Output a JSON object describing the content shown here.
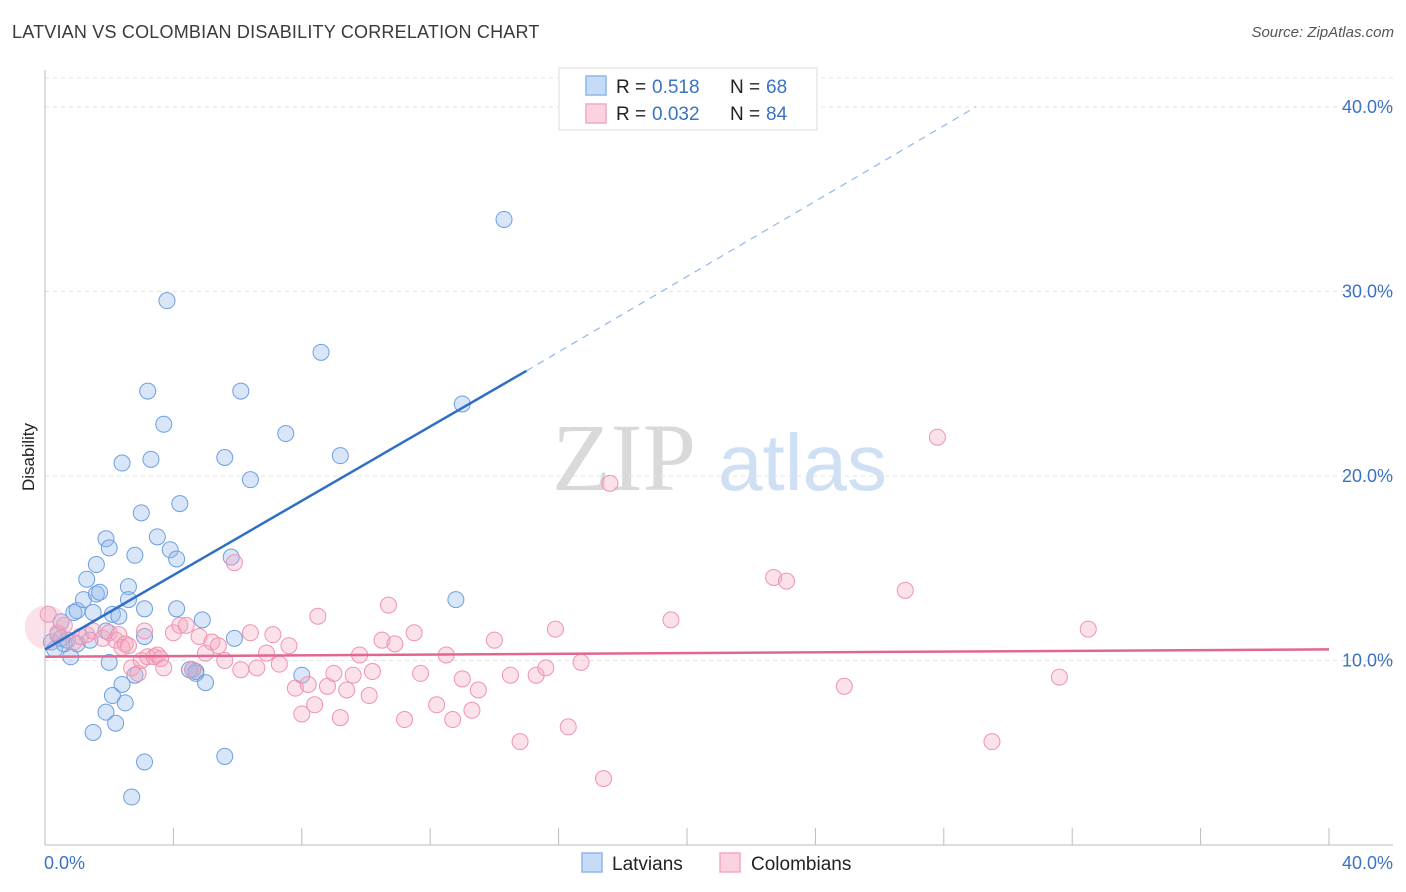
{
  "header": {
    "title": "LATVIAN VS COLOMBIAN DISABILITY CORRELATION CHART",
    "source": "Source: ZipAtlas.com"
  },
  "watermark": {
    "zip": "ZIP",
    "atlas": "atlas"
  },
  "legend": {
    "rows": [
      {
        "r_label": "R =",
        "r_value": "0.518",
        "n_label": "N =",
        "n_value": "68",
        "color": "#8fb7ea"
      },
      {
        "r_label": "R =",
        "r_value": "0.032",
        "n_label": "N =",
        "n_value": "84",
        "color": "#f3a8c0"
      }
    ]
  },
  "bottom_legend": {
    "items": [
      {
        "label": "Latvians",
        "color": "#8fb7ea"
      },
      {
        "label": "Colombians",
        "color": "#f3a8c0"
      }
    ]
  },
  "chart_data": {
    "type": "scatter",
    "title": "LATVIAN VS COLOMBIAN DISABILITY CORRELATION CHART",
    "xlabel": "",
    "ylabel": "Disability",
    "xlim": [
      0,
      40
    ],
    "ylim": [
      0,
      42
    ],
    "x_tick_labels": [
      "0.0%",
      "40.0%"
    ],
    "y_ticks": [
      10,
      20,
      30,
      40
    ],
    "y_tick_labels": [
      "10.0%",
      "20.0%",
      "30.0%",
      "40.0%"
    ],
    "grid": true,
    "legend_position": "top-center",
    "series": [
      {
        "name": "Latvians",
        "color": "#6d9fe0",
        "line_color": "#2f6fc6",
        "trend": {
          "x0": 0.0,
          "y0": 10.6,
          "x1": 15.0,
          "y1": 25.7,
          "dash_to_x": 29.0,
          "dash_to_y": 40.0
        },
        "points": [
          [
            0.2,
            11.0
          ],
          [
            0.3,
            10.6
          ],
          [
            0.4,
            11.4
          ],
          [
            0.5,
            11.2
          ],
          [
            0.6,
            10.9
          ],
          [
            0.7,
            11.1
          ],
          [
            0.8,
            10.2
          ],
          [
            0.9,
            12.6
          ],
          [
            1.0,
            12.7
          ],
          [
            1.0,
            10.9
          ],
          [
            1.2,
            13.3
          ],
          [
            1.3,
            14.4
          ],
          [
            1.4,
            11.1
          ],
          [
            1.5,
            6.1
          ],
          [
            1.5,
            12.6
          ],
          [
            1.6,
            13.6
          ],
          [
            1.7,
            13.7
          ],
          [
            1.6,
            15.2
          ],
          [
            1.9,
            7.2
          ],
          [
            1.9,
            11.6
          ],
          [
            2.0,
            9.9
          ],
          [
            1.9,
            16.6
          ],
          [
            2.0,
            16.1
          ],
          [
            2.1,
            12.5
          ],
          [
            2.1,
            8.1
          ],
          [
            2.2,
            6.6
          ],
          [
            2.3,
            12.4
          ],
          [
            2.4,
            8.7
          ],
          [
            2.4,
            20.7
          ],
          [
            2.5,
            7.7
          ],
          [
            2.6,
            14.0
          ],
          [
            2.6,
            13.3
          ],
          [
            2.7,
            2.6
          ],
          [
            2.8,
            9.2
          ],
          [
            2.8,
            15.7
          ],
          [
            3.0,
            18.0
          ],
          [
            3.1,
            12.8
          ],
          [
            3.1,
            4.5
          ],
          [
            3.1,
            11.3
          ],
          [
            3.2,
            24.6
          ],
          [
            3.3,
            20.9
          ],
          [
            3.5,
            16.7
          ],
          [
            3.7,
            22.8
          ],
          [
            3.8,
            29.5
          ],
          [
            3.9,
            16.0
          ],
          [
            4.1,
            12.8
          ],
          [
            4.1,
            15.5
          ],
          [
            4.2,
            18.5
          ],
          [
            4.7,
            9.3
          ],
          [
            4.7,
            9.4
          ],
          [
            4.9,
            12.2
          ],
          [
            5.0,
            8.8
          ],
          [
            5.6,
            21.0
          ],
          [
            5.6,
            4.8
          ],
          [
            5.8,
            15.6
          ],
          [
            5.9,
            11.2
          ],
          [
            6.1,
            24.6
          ],
          [
            6.4,
            19.8
          ],
          [
            7.5,
            22.3
          ],
          [
            8.0,
            9.2
          ],
          [
            8.6,
            26.7
          ],
          [
            9.2,
            21.1
          ],
          [
            12.8,
            13.3
          ],
          [
            13.0,
            23.9
          ],
          [
            14.3,
            33.9
          ],
          [
            4.5,
            9.5
          ],
          [
            4.6,
            9.5
          ],
          [
            0.5,
            12.1
          ]
        ]
      },
      {
        "name": "Colombians",
        "color": "#f093b0",
        "line_color": "#e2668f",
        "trend": {
          "x0": 0.0,
          "y0": 10.2,
          "x1": 40.0,
          "y1": 10.6
        },
        "points": [
          [
            0.1,
            12.5
          ],
          [
            0.4,
            11.5
          ],
          [
            0.6,
            11.9
          ],
          [
            0.9,
            11.0
          ],
          [
            1.1,
            11.3
          ],
          [
            1.3,
            11.4
          ],
          [
            1.5,
            11.6
          ],
          [
            1.8,
            11.2
          ],
          [
            2.0,
            11.5
          ],
          [
            2.2,
            11.1
          ],
          [
            2.3,
            11.4
          ],
          [
            2.4,
            10.7
          ],
          [
            2.5,
            10.9
          ],
          [
            2.6,
            10.8
          ],
          [
            2.7,
            9.6
          ],
          [
            2.9,
            9.3
          ],
          [
            3.0,
            10.0
          ],
          [
            3.1,
            11.6
          ],
          [
            3.2,
            10.2
          ],
          [
            3.4,
            10.2
          ],
          [
            3.5,
            10.3
          ],
          [
            3.6,
            10.1
          ],
          [
            3.7,
            9.6
          ],
          [
            4.0,
            11.5
          ],
          [
            4.2,
            11.9
          ],
          [
            4.4,
            11.9
          ],
          [
            4.6,
            9.5
          ],
          [
            4.8,
            11.3
          ],
          [
            5.0,
            10.4
          ],
          [
            5.2,
            11.0
          ],
          [
            5.4,
            10.8
          ],
          [
            5.6,
            10.0
          ],
          [
            5.9,
            15.3
          ],
          [
            6.1,
            9.5
          ],
          [
            6.4,
            11.5
          ],
          [
            6.6,
            9.6
          ],
          [
            6.9,
            10.4
          ],
          [
            7.1,
            11.4
          ],
          [
            7.3,
            9.8
          ],
          [
            7.6,
            10.8
          ],
          [
            7.8,
            8.5
          ],
          [
            8.0,
            7.1
          ],
          [
            8.2,
            8.7
          ],
          [
            8.4,
            7.6
          ],
          [
            8.5,
            12.4
          ],
          [
            8.8,
            8.6
          ],
          [
            9.0,
            9.3
          ],
          [
            9.2,
            6.9
          ],
          [
            9.4,
            8.4
          ],
          [
            9.6,
            9.2
          ],
          [
            9.8,
            10.3
          ],
          [
            10.1,
            8.1
          ],
          [
            10.2,
            9.4
          ],
          [
            10.5,
            11.1
          ],
          [
            10.7,
            13.0
          ],
          [
            10.9,
            10.9
          ],
          [
            11.2,
            6.8
          ],
          [
            11.5,
            11.5
          ],
          [
            11.7,
            9.3
          ],
          [
            12.2,
            7.6
          ],
          [
            12.5,
            10.3
          ],
          [
            12.7,
            6.8
          ],
          [
            13.0,
            9.0
          ],
          [
            13.3,
            7.3
          ],
          [
            13.5,
            8.4
          ],
          [
            14.0,
            11.1
          ],
          [
            14.5,
            9.2
          ],
          [
            14.8,
            5.6
          ],
          [
            15.3,
            9.2
          ],
          [
            15.6,
            9.6
          ],
          [
            15.9,
            11.7
          ],
          [
            16.3,
            6.4
          ],
          [
            16.7,
            9.9
          ],
          [
            17.4,
            3.6
          ],
          [
            17.6,
            19.6
          ],
          [
            19.5,
            12.2
          ],
          [
            22.7,
            14.5
          ],
          [
            23.1,
            14.3
          ],
          [
            24.9,
            8.6
          ],
          [
            26.8,
            13.8
          ],
          [
            27.8,
            22.1
          ],
          [
            29.5,
            5.6
          ],
          [
            31.6,
            9.1
          ],
          [
            32.5,
            11.7
          ]
        ]
      }
    ]
  }
}
